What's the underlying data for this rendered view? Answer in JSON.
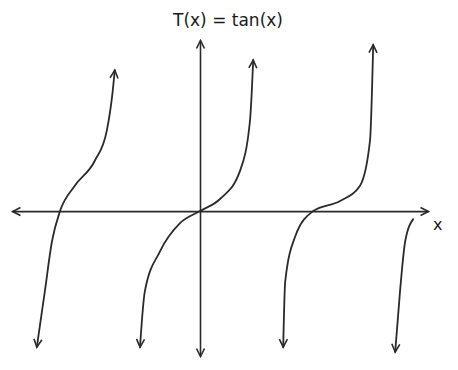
{
  "chart_data": {
    "type": "line",
    "title": "T(x) = tan(x)",
    "x_label": "x",
    "x": [
      -4.08,
      -3.88,
      -3.7,
      -3.5,
      -3.13,
      -2.63,
      -2.33,
      -2.18,
      -2.13,
      -1.9,
      -1.5,
      -1.38,
      -1.0,
      -0.5,
      0,
      0.5,
      1.0,
      1.25,
      1.33,
      1.7,
      2.08,
      2.13,
      2.38,
      2.83,
      3.5,
      4.0,
      4.25,
      4.33,
      4.7,
      4.88,
      5.0,
      5.13,
      5.33
    ],
    "values": [
      -3.38,
      -2.0,
      -0.75,
      0,
      0.63,
      1.25,
      2.0,
      3.0,
      3.5,
      null,
      -3.38,
      -2.0,
      -1.0,
      -0.3,
      0,
      0.3,
      1.0,
      2.25,
      3.75,
      null,
      -3.38,
      -1.75,
      -0.63,
      0,
      0.25,
      0.63,
      1.75,
      4.13,
      null,
      -3.5,
      -2.0,
      -0.75,
      -0.2
    ],
    "xlim": [
      -4.7,
      5.7
    ],
    "ylim": [
      -3.6,
      4.25
    ],
    "tick_labels": false,
    "grid": false,
    "color": "#2a2a2a"
  }
}
